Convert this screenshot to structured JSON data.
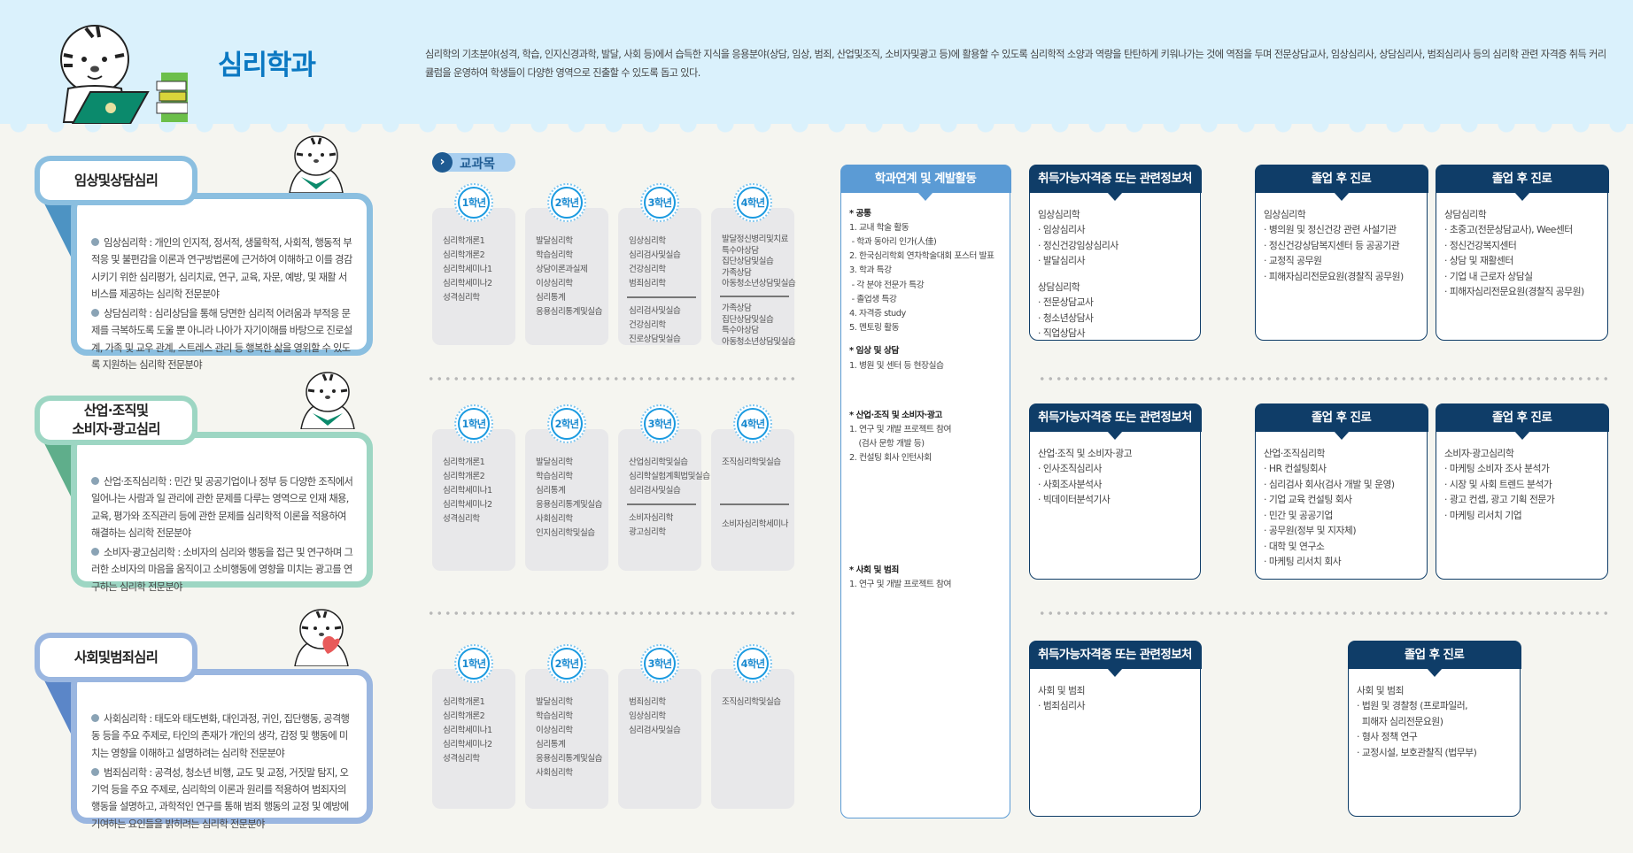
{
  "header": {
    "title": "심리학과",
    "description": "심리학의 기초분야(성격, 학습, 인지신경과학, 발달, 사회 등)에서 습득한 지식을 응용분야(상담, 임상, 범죄, 산업및조직, 소비자및광고 등)에 활용할 수 있도록 심리학적 소양과 역량을 탄탄하게 키워나가는 것에 역점을 두며 전문상담교사, 임상심리사, 상담심리사, 범죄심리사 등의 심리학 관련 자격증 취득 커리큘럼을 운영하여 학생들이 다양한 영역으로 진출할 수 있도록 돕고 있다."
  },
  "colors": {
    "title_blue": "#0a78c2",
    "header_bg": "#daf1fc",
    "navy": "#0f3d68",
    "activity_blue": "#5b9bd5",
    "tracks": [
      "#8bbfe0",
      "#9dd6c3",
      "#9ab6e0"
    ],
    "track_dark": [
      "#4d93c3",
      "#5fae8b",
      "#5b86c8"
    ]
  },
  "subjects_label": "교과목",
  "years": [
    "1학년",
    "2학년",
    "3학년",
    "4학년"
  ],
  "tracks": [
    {
      "title": "임상및상담심리",
      "items": [
        "임상심리학 : 개인의 인지적, 정서적, 생물학적, 사회적, 행동적 부적응 및 불편감을 이론과 연구방법론에 근거하여 이해하고 이를 경감시키기 위한 심리평가, 심리치료, 연구, 교육, 자문, 예방, 및 재활 서비스를 제공하는 심리학 전문분야",
        "상담심리학 : 심리상담을 통해 당면한 심리적 어려움과 부적응 문제를 극복하도록 도울 뿐 아니라 나아가 자기이해를 바탕으로 진로설계, 가족 및 교우 관계, 스트레스 관리 등 행복한 삶을 영위할 수 있도록 지원하는 심리학 전문분야"
      ],
      "curriculum": [
        {
          "top": [
            "심리학개론1",
            "심리학개론2",
            "심리학세미나1",
            "심리학세미나2",
            "성격심리학"
          ],
          "bottom": []
        },
        {
          "top": [
            "발달심리학",
            "학습심리학",
            "상담이론과실제",
            "이상심리학",
            "심리통계",
            "응용심리통계및실습"
          ],
          "bottom": []
        },
        {
          "top": [
            "임상심리학",
            "심리검사및실습",
            "건강심리학",
            "범죄심리학"
          ],
          "bottom": [
            "심리검사및실습",
            "건강심리학",
            "진로상담및실습"
          ]
        },
        {
          "top": [
            "발달정신병리및치료",
            "특수아상담",
            "집단상담및실습",
            "가족상담",
            "아동청소년상담및실습"
          ],
          "bottom": [
            "가족상담",
            "집단상담및실습",
            "특수아상담",
            "아동청소년상담및실습"
          ]
        }
      ],
      "certificates": {
        "title": "취득가능자격증 또는 관련정보처",
        "lines": [
          "임상심리학",
          "· 임상심리사",
          "· 정신건강임상심리사",
          "· 발달심리사",
          "",
          "상담심리학",
          "· 전문상담교사",
          "· 청소년상담사",
          "· 직업상담사"
        ]
      },
      "careers": [
        {
          "title": "졸업 후 진로",
          "lines": [
            "임상심리학",
            "· 병의원 및 정신건강 관련 사설기관",
            "· 정신건강상담복지센터 등 공공기관",
            "· 교정직 공무원",
            "· 피해자심리전문요원(경찰직 공무원)"
          ]
        },
        {
          "title": "졸업 후 진로",
          "lines": [
            "상담심리학",
            "· 초중고(전문상담교사), Wee센터",
            "· 정신건강복지센터",
            "· 상담 및 재활센터",
            "· 기업 내 근로자 상담실",
            "· 피해자심리전문요원(경찰직 공무원)"
          ]
        }
      ]
    },
    {
      "title": "산업·조직및\n소비자·광고심리",
      "items": [
        "산업·조직심리학 : 민간 및 공공기업이나 정부 등 다양한 조직에서 일어나는 사람과 일 관리에 관한 문제를 다루는 영역으로 인재 채용, 교육, 평가와 조직관리 등에 관한 문제를 심리학적 이론을 적용하여 해결하는 심리학 전문분야",
        "소비자·광고심리학 : 소비자의 심리와 행동을 접근 및 연구하며 그러한 소비자의 마음을 움직이고 소비행동에 영향을 미치는 광고를 연구하는 심리학 전문분야"
      ],
      "curriculum": [
        {
          "top": [
            "심리학개론1",
            "심리학개론2",
            "심리학세미나1",
            "심리학세미나2",
            "성격심리학"
          ],
          "bottom": []
        },
        {
          "top": [
            "발달심리학",
            "학습심리학",
            "심리통계",
            "응용심리통계및실습",
            "사회심리학",
            "인지심리학및실습"
          ],
          "bottom": []
        },
        {
          "top": [
            "산업심리학및실습",
            "심리학실험계획법및실습",
            "심리검사및실습"
          ],
          "bottom": [
            "소비자심리학",
            "광고심리학"
          ]
        },
        {
          "top": [
            "조직심리학및실습"
          ],
          "bottom": [
            "소비자심리학세미나"
          ]
        }
      ],
      "certificates": {
        "title": "취득가능자격증 또는 관련정보처",
        "lines": [
          "산업·조직 및 소비자·광고",
          "· 인사조직심리사",
          "· 사회조사분석사",
          "· 빅데이터분석기사"
        ]
      },
      "careers": [
        {
          "title": "졸업 후 진로",
          "lines": [
            "산업·조직심리학",
            "· HR 컨설팅회사",
            "· 심리검사 회사(검사 개발 및 운영)",
            "· 기업 교육 컨설팅 회사",
            "· 민간 및 공공기업",
            "· 공무원(정부 및 지자체)",
            "· 대학 및 연구소",
            "· 마케팅 리서치 회사"
          ]
        },
        {
          "title": "졸업 후 진로",
          "lines": [
            "소비자·광고심리학",
            "· 마케팅 소비자 조사 분석가",
            "· 시장 및 사회 트렌드 분석가",
            "· 광고 컨셉, 광고 기획 전문가",
            "· 마케팅 리서치 기업"
          ]
        }
      ]
    },
    {
      "title": "사회및범죄심리",
      "items": [
        "사회심리학 : 태도와 태도변화, 대인과정, 귀인, 집단행동, 공격행동 등을 주요 주제로, 타인의 존재가 개인의 생각, 감정 및 행동에 미치는 영향을 이해하고 설명하려는 심리학 전문분야",
        "범죄심리학 : 공격성, 청소년 비행, 교도 및 교정, 거짓말 탐지, 오기억 등을 주요 주제로, 심리학의 이론과 원리를 적용하여 범죄자의 행동을 설명하고, 과학적인 연구를 통해 범죄 행동의 교정 및 예방에 기여하는 요인들을 밝히려는 심리학 전문분야"
      ],
      "curriculum": [
        {
          "top": [
            "심리학개론1",
            "심리학개론2",
            "심리학세미나1",
            "심리학세미나2",
            "성격심리학"
          ],
          "bottom": []
        },
        {
          "top": [
            "발달심리학",
            "학습심리학",
            "이상심리학",
            "심리통계",
            "응용심리통계및실습",
            "사회심리학"
          ],
          "bottom": []
        },
        {
          "top": [
            "범죄심리학",
            "임상심리학",
            "심리검사및실습"
          ],
          "bottom": []
        },
        {
          "top": [
            "조직심리학및실습"
          ],
          "bottom": []
        }
      ],
      "certificates": {
        "title": "취득가능자격증 또는 관련정보처",
        "lines": [
          "사회 및 범죄",
          "· 범죄심리사"
        ]
      },
      "careers": [
        {
          "title": "졸업 후 진로",
          "lines": [
            "사회 및 범죄",
            "· 법원 및 경찰청 (프로파일러,",
            "  피해자 심리전문요원)",
            "· 형사 정책 연구",
            "· 교정시설, 보호관찰직 (법무부)"
          ]
        }
      ]
    }
  ],
  "activity": {
    "title": "학과연계 및 계발활동",
    "sections": [
      {
        "heading": "* 공통",
        "lines": [
          "1. 교내 학술 활동",
          " - 학과 동아리 인가(人佳)",
          "2. 한국심리학회 연차학술대회 포스터 발표",
          "3. 학과 특강",
          " - 각 분야 전문가 특강",
          " - 졸업생 특강",
          "4. 자격증 study",
          "5. 멘토링 활동"
        ]
      },
      {
        "heading": "* 임상 및 상담",
        "lines": [
          "1. 병원 및 센터 등 현장실습"
        ]
      },
      {
        "heading": "* 산업·조직 및 소비자·광고",
        "lines": [
          "1. 연구 및 개발 프로젝트 참여",
          "    (검사 문항 개발 등)",
          "2. 컨설팅 회사 인턴사회"
        ]
      },
      {
        "heading": "* 사회 및 범죄",
        "lines": [
          "1. 연구 및 개발 프로젝트 참여"
        ]
      }
    ]
  }
}
